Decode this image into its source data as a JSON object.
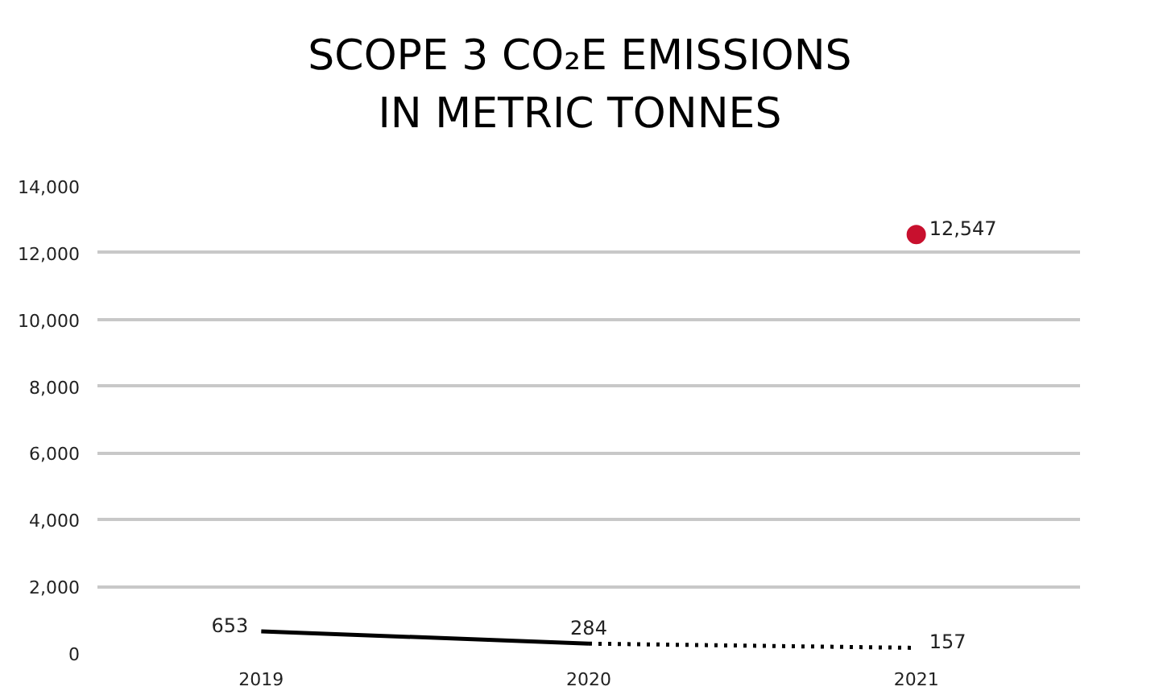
{
  "chart_data": {
    "type": "line",
    "title": "SCOPE 3 CO₂E EMISSIONS\nIN METRIC TONNES",
    "categories": [
      "2019",
      "2020",
      "2021"
    ],
    "series": [
      {
        "color": "#000000",
        "line_style": "solid",
        "values": [
          653,
          284,
          null
        ],
        "value_labels": [
          "653",
          "284",
          null
        ]
      },
      {
        "color": "#000000",
        "line_style": "dotted",
        "values": [
          null,
          284,
          157
        ],
        "value_labels": [
          null,
          null,
          "157"
        ]
      },
      {
        "type": "scatter",
        "color": "#c8102e",
        "marker": "circle",
        "values": [
          null,
          null,
          12547
        ],
        "value_labels": [
          null,
          null,
          "12,547"
        ]
      }
    ],
    "ylim": [
      0,
      14000
    ],
    "yticks": [
      {
        "value": 0,
        "label": "0"
      },
      {
        "value": 2000,
        "label": "2,000"
      },
      {
        "value": 4000,
        "label": "4,000"
      },
      {
        "value": 6000,
        "label": "6,000"
      },
      {
        "value": 8000,
        "label": "8,000"
      },
      {
        "value": 10000,
        "label": "10,000"
      },
      {
        "value": 12000,
        "label": "12,000"
      },
      {
        "value": 14000,
        "label": "14,000"
      }
    ],
    "grid": "y"
  }
}
